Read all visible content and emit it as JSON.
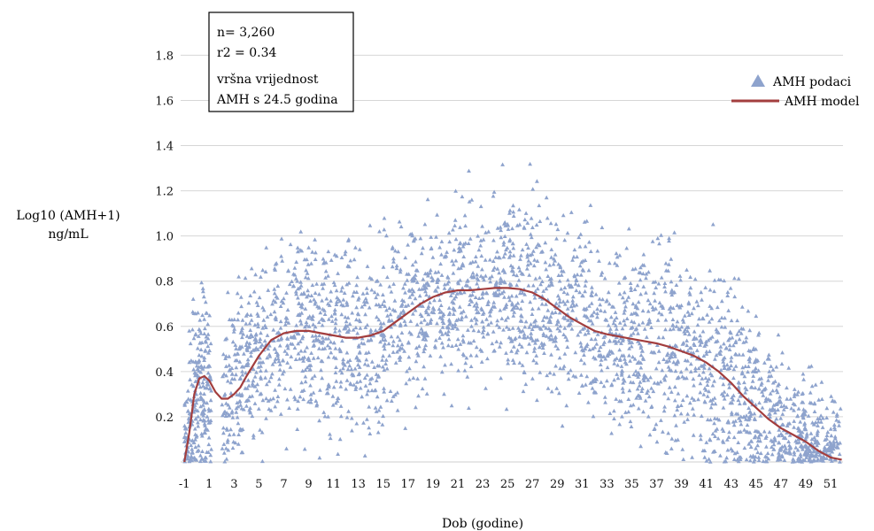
{
  "chart_data": {
    "type": "scatter",
    "title": "",
    "xlabel": "Dob (godine)",
    "ylabel_lines": [
      "Log10 (AMH+1)",
      "ng/mL"
    ],
    "xlim": [
      -1.3,
      52.0
    ],
    "ylim": [
      0.0,
      1.88
    ],
    "x_ticks": [
      -1,
      1,
      3,
      5,
      7,
      9,
      11,
      13,
      15,
      17,
      19,
      21,
      23,
      25,
      27,
      29,
      31,
      33,
      35,
      37,
      39,
      41,
      43,
      45,
      47,
      49,
      51
    ],
    "y_ticks": [
      0.2,
      0.4,
      0.6,
      0.8,
      1.0,
      1.2,
      1.4,
      1.6,
      1.8
    ],
    "y_tick_labels": [
      "0.2",
      "0.4",
      "0.6",
      "0.8",
      "1.0",
      "1.2",
      "1.4",
      "1.6",
      "1.8"
    ],
    "grid": "horizontal",
    "legend_placement": "top-right",
    "annotation_lines": [
      "n= 3,260",
      "r2 = 0.34",
      "vršna vrijednost",
      "AMH s 24.5 godina"
    ],
    "colors": {
      "points": "#8ea3cd",
      "model": "#a33e3e"
    },
    "series": [
      {
        "name": "AMH podaci",
        "kind": "scatter",
        "n": 3260,
        "peak_age": 24.5
      },
      {
        "name": "AMH model",
        "kind": "line",
        "x": [
          -1.0,
          -0.6,
          -0.2,
          0.2,
          0.6,
          1.0,
          1.5,
          2.0,
          2.5,
          3.0,
          3.5,
          4.0,
          5.0,
          6.0,
          7.0,
          8.0,
          9.0,
          10.0,
          11.0,
          12.0,
          13.0,
          14.0,
          15.0,
          16.0,
          17.0,
          18.0,
          19.0,
          20.0,
          21.0,
          22.0,
          23.0,
          24.0,
          25.0,
          26.0,
          27.0,
          28.0,
          29.0,
          30.0,
          31.0,
          32.0,
          33.0,
          34.0,
          35.0,
          36.0,
          37.0,
          38.0,
          39.0,
          40.0,
          41.0,
          42.0,
          43.0,
          44.0,
          45.0,
          46.0,
          47.0,
          48.0,
          49.0,
          50.0,
          51.0,
          51.9
        ],
        "y": [
          0.0,
          0.13,
          0.3,
          0.37,
          0.38,
          0.36,
          0.31,
          0.28,
          0.28,
          0.3,
          0.33,
          0.38,
          0.47,
          0.54,
          0.57,
          0.58,
          0.58,
          0.57,
          0.56,
          0.55,
          0.55,
          0.56,
          0.58,
          0.62,
          0.66,
          0.7,
          0.73,
          0.75,
          0.76,
          0.76,
          0.765,
          0.77,
          0.77,
          0.765,
          0.75,
          0.72,
          0.68,
          0.64,
          0.61,
          0.58,
          0.565,
          0.555,
          0.545,
          0.535,
          0.525,
          0.51,
          0.49,
          0.47,
          0.44,
          0.4,
          0.35,
          0.29,
          0.24,
          0.19,
          0.15,
          0.12,
          0.09,
          0.05,
          0.02,
          0.01
        ]
      }
    ]
  }
}
